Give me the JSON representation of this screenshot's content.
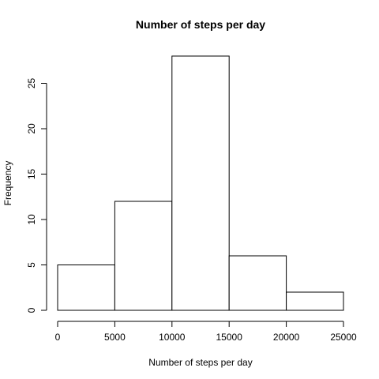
{
  "chart_data": {
    "type": "bar",
    "title": "Number of steps per day",
    "xlabel": "Number of steps per day",
    "ylabel": "Frequency",
    "bins": [
      {
        "start": 0,
        "end": 5000,
        "count": 5
      },
      {
        "start": 5000,
        "end": 10000,
        "count": 12
      },
      {
        "start": 10000,
        "end": 15000,
        "count": 28
      },
      {
        "start": 15000,
        "end": 20000,
        "count": 6
      },
      {
        "start": 20000,
        "end": 25000,
        "count": 2
      }
    ],
    "xlim": [
      0,
      25000
    ],
    "ylim": [
      0,
      28
    ],
    "xticks": [
      0,
      5000,
      10000,
      15000,
      20000,
      25000
    ],
    "yticks": [
      0,
      5,
      10,
      15,
      20,
      25
    ],
    "grid": false
  }
}
